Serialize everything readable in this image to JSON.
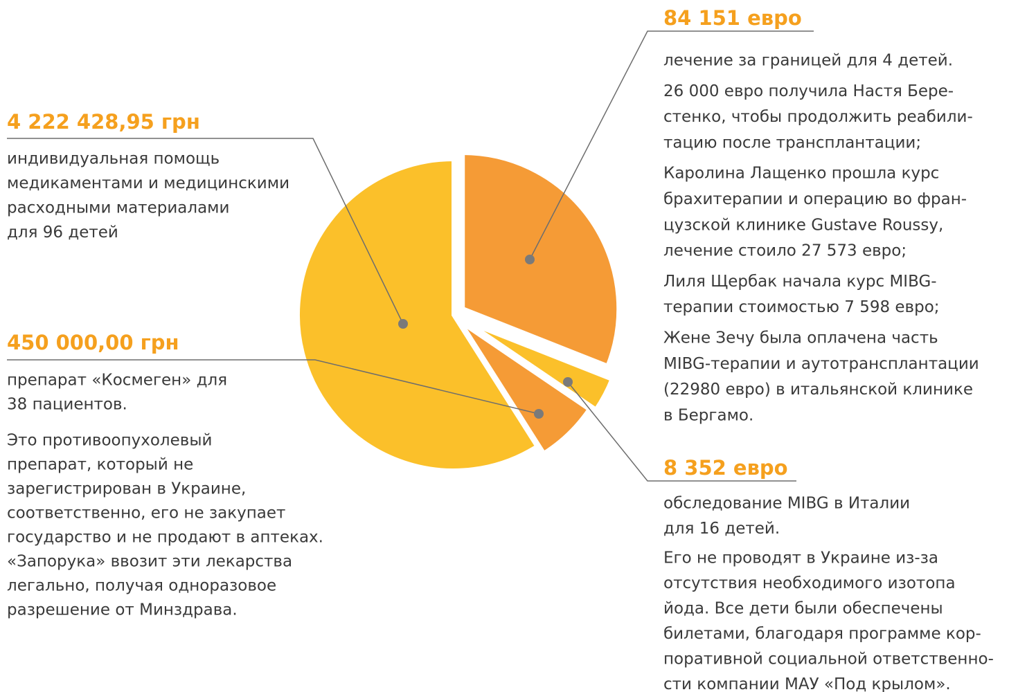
{
  "chart_data": {
    "type": "pie",
    "categories": [
      "84 151 евро",
      "8 352 евро",
      "450 000,00 грн",
      "4 222 428,95 грн"
    ],
    "values": [
      31,
      3.5,
      6.5,
      59
    ],
    "colors": [
      "#f59b36",
      "#fbc02a",
      "#f59b36",
      "#fbc02a"
    ],
    "descriptions": [
      [
        [
          "лечение за границей для 4 детей."
        ],
        [
          "26 000 евро получила Настя Бере-",
          "стенко, чтобы продолжить реабили-",
          "тацию после трансплантации;"
        ],
        [
          "Каролина Лащенко прошла курс",
          "брахитерапии и операцию во фран-",
          "цузской клинике Gustave Roussy,",
          "лечение стоило 27 573 евро;"
        ],
        [
          "Лиля Щербак начала курс MIBG-",
          "терапии стоимостью 7 598 евро;"
        ],
        [
          "Жене Зечу была оплачена часть",
          "MIBG-терапии и аутотрансплантации",
          "(22980 евро) в итальянской клинике",
          "в Бергамо."
        ]
      ],
      [
        [
          "обследование MIBG в Италии",
          "для 16 детей."
        ],
        [
          "Его не проводят в Украине из-за",
          "отсутствия необходимого изотопа",
          "йода. Все дети были обеспечены",
          "билетами, благодаря программе кор-",
          "поративной социальной ответственно-",
          "сти компании МАУ «Под крылом»."
        ]
      ],
      [
        [
          "препарат «Космеген» для",
          "38 пациентов."
        ],
        [
          "Это противоопухолевый",
          "препарат, который не",
          "зарегистрирован в Украине,",
          "соответственно, его не закупает",
          "государство и не продают в аптеках.",
          "«Запорука» ввозит эти лекарства",
          "легально, получая одноразовое",
          "разрешение от Минздрава."
        ]
      ],
      [
        [
          "индивидуальная помощь",
          "медикаментами и медицинскими",
          "расходными материалами",
          "для 96 детей"
        ]
      ]
    ]
  }
}
